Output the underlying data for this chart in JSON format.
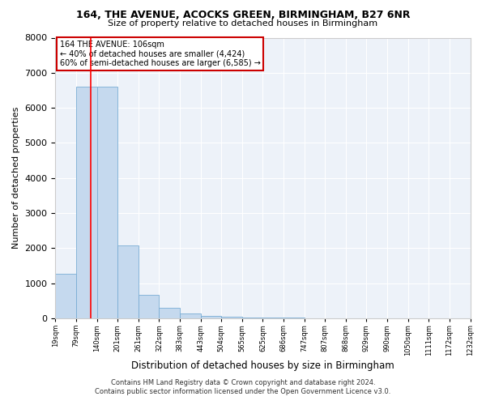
{
  "title1": "164, THE AVENUE, ACOCKS GREEN, BIRMINGHAM, B27 6NR",
  "title2": "Size of property relative to detached houses in Birmingham",
  "xlabel": "Distribution of detached houses by size in Birmingham",
  "ylabel": "Number of detached properties",
  "footnote1": "Contains HM Land Registry data © Crown copyright and database right 2024.",
  "footnote2": "Contains public sector information licensed under the Open Government Licence v3.0.",
  "annotation_line1": "164 THE AVENUE: 106sqm",
  "annotation_line2": "← 40% of detached houses are smaller (4,424)",
  "annotation_line3": "60% of semi-detached houses are larger (6,585) →",
  "bar_heights": [
    1280,
    6600,
    6600,
    2080,
    680,
    290,
    135,
    80,
    50,
    30,
    20,
    15,
    10,
    8,
    5,
    4,
    3,
    2,
    2,
    1
  ],
  "bar_color": "#c5d9ee",
  "bar_edge_color": "#7aadd4",
  "red_line_bin": 1,
  "ylim": [
    0,
    8000
  ],
  "yticks": [
    0,
    1000,
    2000,
    3000,
    4000,
    5000,
    6000,
    7000,
    8000
  ],
  "tick_labels": [
    "19sqm",
    "79sqm",
    "140sqm",
    "201sqm",
    "261sqm",
    "322sqm",
    "383sqm",
    "443sqm",
    "504sqm",
    "565sqm",
    "625sqm",
    "686sqm",
    "747sqm",
    "807sqm",
    "868sqm",
    "929sqm",
    "990sqm",
    "1050sqm",
    "1111sqm",
    "1172sqm",
    "1232sqm"
  ],
  "annotation_box_color": "#ffffff",
  "annotation_box_edge": "#cc0000",
  "background_color": "#ffffff",
  "plot_bg_color": "#edf2f9"
}
